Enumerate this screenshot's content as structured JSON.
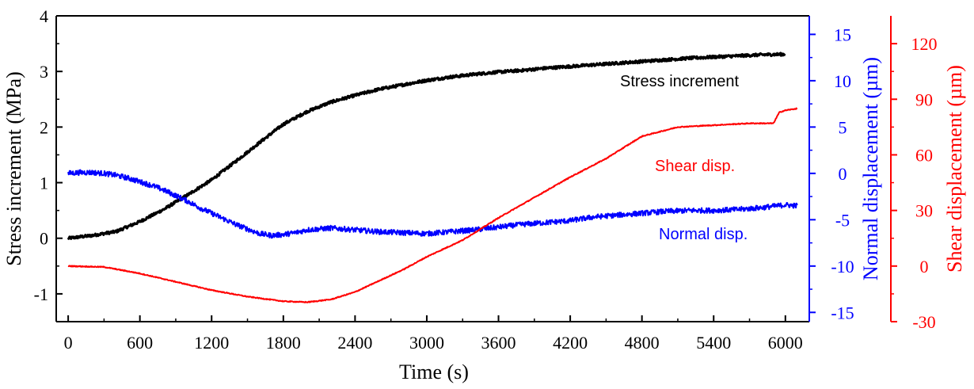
{
  "chart_data": {
    "type": "line",
    "title": "",
    "x_axis": {
      "label": "Time (s)",
      "range": [
        -100,
        6200
      ],
      "ticks": [
        0,
        600,
        1200,
        1800,
        2400,
        3000,
        3600,
        4200,
        4800,
        5400,
        6000
      ]
    },
    "left_axis": {
      "label": "Stress increment (MPa)",
      "range": [
        -1.5,
        4
      ],
      "ticks": [
        -1,
        0,
        1,
        2,
        3,
        4
      ],
      "color": "#000000"
    },
    "right_axis_1": {
      "label": "Normal displacement (µm)",
      "range": [
        -16,
        17
      ],
      "ticks": [
        -15,
        -10,
        -5,
        0,
        5,
        10,
        15
      ],
      "color": "#0000ff"
    },
    "right_axis_2": {
      "label": "Shear displacement (µm)",
      "range": [
        -30,
        135
      ],
      "ticks": [
        -30,
        0,
        30,
        60,
        90,
        120
      ],
      "color": "#ff0000"
    },
    "series": [
      {
        "name": "Stress increment",
        "axis": "left",
        "color": "#000000",
        "noise": 0.025,
        "x": [
          0,
          200,
          400,
          600,
          800,
          1000,
          1200,
          1400,
          1600,
          1800,
          2000,
          2200,
          2400,
          2600,
          2800,
          3000,
          3200,
          3400,
          3600,
          3800,
          4000,
          4200,
          4400,
          4600,
          4800,
          5000,
          5200,
          5400,
          5600,
          5800,
          6000
        ],
        "y": [
          0.0,
          0.05,
          0.12,
          0.3,
          0.52,
          0.78,
          1.05,
          1.38,
          1.72,
          2.05,
          2.28,
          2.45,
          2.57,
          2.68,
          2.76,
          2.84,
          2.9,
          2.95,
          2.99,
          3.02,
          3.06,
          3.09,
          3.12,
          3.15,
          3.18,
          3.21,
          3.24,
          3.26,
          3.28,
          3.3,
          3.31
        ]
      },
      {
        "name": "Normal disp.",
        "axis": "right1",
        "color": "#0000ff",
        "noise": 0.28,
        "x": [
          0,
          100,
          200,
          300,
          400,
          500,
          600,
          700,
          800,
          900,
          1000,
          1100,
          1200,
          1300,
          1400,
          1500,
          1600,
          1700,
          1800,
          1900,
          2000,
          2200,
          2400,
          2600,
          2800,
          3000,
          3200,
          3400,
          3600,
          3800,
          4000,
          4200,
          4400,
          4600,
          4800,
          5000,
          5200,
          5400,
          5600,
          5800,
          6000,
          6100
        ],
        "y": [
          0.0,
          0.1,
          0.1,
          0.0,
          -0.2,
          -0.5,
          -0.9,
          -1.3,
          -1.8,
          -2.4,
          -3.0,
          -3.7,
          -4.3,
          -4.9,
          -5.5,
          -6.0,
          -6.5,
          -6.7,
          -6.6,
          -6.4,
          -6.1,
          -5.9,
          -6.1,
          -6.3,
          -6.4,
          -6.5,
          -6.3,
          -6.1,
          -5.8,
          -5.5,
          -5.3,
          -5.1,
          -4.7,
          -4.5,
          -4.3,
          -4.1,
          -4.0,
          -4.0,
          -3.9,
          -3.7,
          -3.4,
          -3.5
        ]
      },
      {
        "name": "Shear disp.",
        "axis": "right2",
        "color": "#ff0000",
        "noise": 0.25,
        "x": [
          0,
          300,
          600,
          900,
          1200,
          1500,
          1800,
          2000,
          2200,
          2400,
          2600,
          2800,
          3000,
          3300,
          3600,
          3900,
          4200,
          4500,
          4800,
          5100,
          5400,
          5700,
          5900,
          5950,
          6000,
          6100
        ],
        "y": [
          0,
          -0.5,
          -4,
          -8.5,
          -13,
          -16.5,
          -19,
          -19.5,
          -18,
          -14,
          -8,
          -2,
          5,
          14,
          26,
          37,
          48,
          58,
          70,
          75,
          76,
          77,
          77,
          83,
          84,
          85
        ]
      }
    ],
    "annotations": [
      {
        "text": "Stress increment",
        "color": "#000000"
      },
      {
        "text": "Shear disp.",
        "color": "#ff0000"
      },
      {
        "text": "Normal disp.",
        "color": "#0000ff"
      }
    ]
  }
}
